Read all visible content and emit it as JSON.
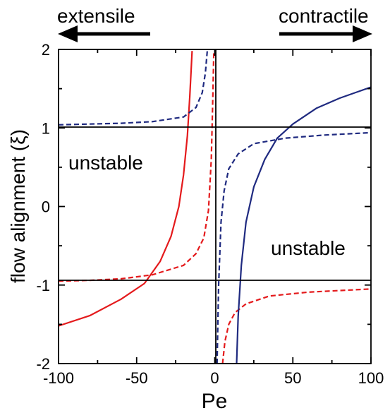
{
  "chart_data": {
    "type": "line",
    "xlabel": "Pe",
    "ylabel": "flow alignment (ξ)",
    "xlim": [
      -100,
      100
    ],
    "ylim": [
      -2,
      2
    ],
    "xticks": [
      "-100",
      "-50",
      "0",
      "50",
      "100"
    ],
    "yticks": [
      "-2",
      "-1",
      "0",
      "1",
      "2"
    ],
    "grid": false,
    "annotations": {
      "left_arrow_label": "extensile",
      "right_arrow_label": "contractile",
      "region_upper_left": "unstable",
      "region_lower_right": "unstable"
    },
    "reference_lines": {
      "horizontal": [
        1,
        -1
      ],
      "vertical": [
        0
      ]
    },
    "colors": {
      "red": "#e41a1c",
      "navy": "#1f2a80",
      "axis": "#000000"
    },
    "series": [
      {
        "color": "#e41a1c",
        "style": "solid",
        "points": [
          [
            -100,
            -1.52
          ],
          [
            -80,
            -1.39
          ],
          [
            -60,
            -1.18
          ],
          [
            -45,
            -0.98
          ],
          [
            -35,
            -0.7
          ],
          [
            -28,
            -0.38
          ],
          [
            -23,
            0.0
          ],
          [
            -20,
            0.4
          ],
          [
            -17.5,
            0.9
          ],
          [
            -16,
            1.4
          ],
          [
            -14.5,
            1.98
          ]
        ]
      },
      {
        "color": "#e41a1c",
        "style": "dashed",
        "points": [
          [
            -100,
            -0.95
          ],
          [
            -80,
            -0.94
          ],
          [
            -60,
            -0.92
          ],
          [
            -40,
            -0.87
          ],
          [
            -20,
            -0.75
          ],
          [
            -12,
            -0.6
          ],
          [
            -7,
            -0.4
          ],
          [
            -4,
            -0.05
          ],
          [
            -2.2,
            0.6
          ],
          [
            -1.2,
            1.4
          ],
          [
            -0.6,
            1.98
          ]
        ]
      },
      {
        "color": "#e41a1c",
        "style": "dashed",
        "points": [
          [
            5,
            -2.0
          ],
          [
            6.5,
            -1.72
          ],
          [
            9,
            -1.5
          ],
          [
            13,
            -1.35
          ],
          [
            20,
            -1.24
          ],
          [
            35,
            -1.14
          ],
          [
            60,
            -1.09
          ],
          [
            100,
            -1.05
          ]
        ]
      },
      {
        "color": "#1f2a80",
        "style": "solid",
        "points": [
          [
            14,
            -2.0
          ],
          [
            15,
            -1.4
          ],
          [
            17,
            -0.75
          ],
          [
            20,
            -0.2
          ],
          [
            25,
            0.25
          ],
          [
            32,
            0.6
          ],
          [
            40,
            0.87
          ],
          [
            50,
            1.05
          ],
          [
            65,
            1.25
          ],
          [
            80,
            1.38
          ],
          [
            100,
            1.52
          ]
        ]
      },
      {
        "color": "#1f2a80",
        "style": "dashed",
        "points": [
          [
            -100,
            1.04
          ],
          [
            -80,
            1.05
          ],
          [
            -60,
            1.06
          ],
          [
            -40,
            1.08
          ],
          [
            -20,
            1.14
          ],
          [
            -12,
            1.26
          ],
          [
            -8,
            1.45
          ],
          [
            -6,
            1.7
          ],
          [
            -4.8,
            1.98
          ]
        ]
      },
      {
        "color": "#1f2a80",
        "style": "dashed",
        "points": [
          [
            1.5,
            -2.0
          ],
          [
            2.5,
            -1.0
          ],
          [
            4,
            -0.2
          ],
          [
            6,
            0.2
          ],
          [
            9,
            0.48
          ],
          [
            15,
            0.67
          ],
          [
            25,
            0.8
          ],
          [
            45,
            0.87
          ],
          [
            70,
            0.91
          ],
          [
            100,
            0.94
          ]
        ]
      }
    ]
  }
}
